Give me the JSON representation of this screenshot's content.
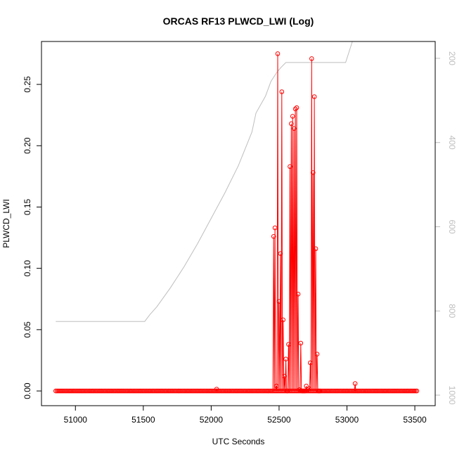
{
  "chart_data": {
    "type": "line",
    "title": "ORCAS RF13 PLWCD_LWI (Log)",
    "xlabel": "UTC Seconds",
    "ylabel": "PLWCD_LWI",
    "xlim": [
      50750,
      53650
    ],
    "ylim": [
      -0.012,
      0.285
    ],
    "y2lim": [
      1025,
      160
    ],
    "x_ticks": [
      51000,
      51500,
      52000,
      52500,
      53000,
      53500
    ],
    "x_tick_labels": [
      "51000",
      "51500",
      "52000",
      "52500",
      "53000",
      "53500"
    ],
    "y_ticks": [
      0.0,
      0.05,
      0.1,
      0.15,
      0.2,
      0.25
    ],
    "y_tick_labels": [
      "0.00",
      "0.05",
      "0.10",
      "0.15",
      "0.20",
      "0.25"
    ],
    "y2_ticks": [
      200,
      400,
      600,
      800,
      1000
    ],
    "y2_tick_labels": [
      "200",
      "400",
      "600",
      "800",
      "1000"
    ],
    "grid": false,
    "legend": "none",
    "colors": {
      "series": "#ff0000",
      "secondary": "#bebebe",
      "frame": "#000000"
    },
    "series": [
      {
        "axis": "left",
        "style": "line+circles",
        "baseline": {
          "x_start": 50855,
          "x_end": 53515,
          "step": 10,
          "value": 0.0
        },
        "x": [
          52040,
          52460,
          52470,
          52480,
          52490,
          52500,
          52510,
          52520,
          52530,
          52540,
          52550,
          52560,
          52570,
          52580,
          52590,
          52600,
          52610,
          52620,
          52630,
          52640,
          52650,
          52660,
          52670,
          52680,
          52690,
          52700,
          52710,
          52720,
          52730,
          52740,
          52750,
          52760,
          52770,
          52780,
          52790,
          52800,
          53060
        ],
        "y": [
          0.0015,
          0.126,
          0.133,
          0.004,
          0.275,
          0.073,
          0.112,
          0.244,
          0.058,
          0.012,
          0.026,
          0.0,
          0.038,
          0.183,
          0.218,
          0.224,
          0.214,
          0.23,
          0.231,
          0.079,
          0.001,
          0.039,
          0.0,
          0.0,
          0.0,
          0.004,
          0.001,
          0.002,
          0.023,
          0.271,
          0.178,
          0.24,
          0.116,
          0.03,
          0.0,
          0.0,
          0.006
        ]
      },
      {
        "axis": "right",
        "style": "line",
        "x": [
          50855,
          51100,
          51300,
          51510,
          51550,
          51600,
          51700,
          51800,
          51900,
          52000,
          52100,
          52200,
          52300,
          52330,
          52400,
          52440,
          52480,
          52510,
          52550,
          52600,
          52650,
          52700,
          52800,
          52900,
          52990,
          53050
        ],
        "y": [
          825,
          825,
          825,
          825,
          808,
          790,
          745,
          695,
          640,
          580,
          520,
          455,
          375,
          330,
          290,
          255,
          235,
          223,
          210,
          210,
          210,
          210,
          210,
          210,
          210,
          150
        ]
      }
    ]
  }
}
